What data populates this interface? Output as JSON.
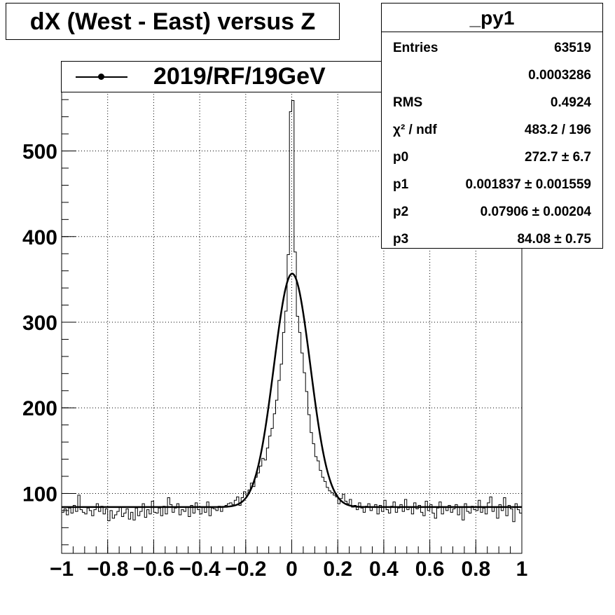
{
  "title": "dX (West - East) versus Z",
  "legend": {
    "label": "2019/RF/19GeV"
  },
  "stats": {
    "name": "_py1",
    "rows": [
      {
        "key": "Entries",
        "value": "63519"
      },
      {
        "key": "",
        "value": "0.0003286"
      },
      {
        "key": "RMS",
        "value": "0.4924"
      },
      {
        "key": "χ² / ndf",
        "value": "483.2 / 196"
      },
      {
        "key": "p0",
        "value": "272.7 ± 6.7"
      },
      {
        "key": "p1",
        "value": "0.001837 ± 0.001559"
      },
      {
        "key": "p2",
        "value": "0.07906 ± 0.00204"
      },
      {
        "key": "p3",
        "value": "84.08 ± 0.75"
      }
    ]
  },
  "chart_data": {
    "type": "line",
    "xlim": [
      -1,
      1
    ],
    "ylim": [
      30,
      570
    ],
    "grid": true,
    "xticks": [
      "−1",
      "−0.8",
      "−0.6",
      "−0.4",
      "−0.2",
      "0",
      "0.2",
      "0.4",
      "0.6",
      "0.8",
      "1"
    ],
    "xtick_values": [
      -1,
      -0.8,
      -0.6,
      -0.4,
      -0.2,
      0,
      0.2,
      0.4,
      0.6,
      0.8,
      1
    ],
    "yticks": [
      "100",
      "200",
      "300",
      "400",
      "500"
    ],
    "ytick_values": [
      100,
      200,
      300,
      400,
      500
    ],
    "histogram": {
      "bins": 200,
      "values": [
        78,
        82,
        75,
        83,
        77,
        86,
        79,
        98,
        81,
        78,
        76,
        83,
        80,
        74,
        81,
        88,
        79,
        85,
        76,
        82,
        68,
        80,
        71,
        75,
        79,
        84,
        73,
        77,
        82,
        70,
        78,
        69,
        83,
        74,
        79,
        88,
        72,
        81,
        76,
        91,
        78,
        77,
        83,
        74,
        85,
        76,
        95,
        87,
        78,
        83,
        88,
        75,
        81,
        79,
        84,
        73,
        86,
        77,
        89,
        81,
        76,
        84,
        78,
        90,
        74,
        83,
        82,
        80,
        85,
        79,
        84,
        86,
        88,
        89,
        87,
        92,
        96,
        86,
        95,
        102,
        98,
        104,
        112,
        108,
        119,
        124,
        132,
        141,
        139,
        153,
        167,
        176,
        193,
        209,
        232,
        251,
        288,
        313,
        379,
        546,
        559,
        382,
        307,
        288,
        264,
        241,
        219,
        192,
        171,
        158,
        143,
        138,
        127,
        119,
        114,
        107,
        103,
        101,
        98,
        96,
        88,
        94,
        99,
        91,
        88,
        93,
        84,
        86,
        81,
        89,
        83,
        78,
        85,
        88,
        80,
        84,
        87,
        76,
        86,
        79,
        92,
        81,
        77,
        85,
        90,
        78,
        83,
        87,
        79,
        93,
        81,
        84,
        76,
        89,
        82,
        86,
        78,
        74,
        91,
        80,
        87,
        77,
        71,
        83,
        90,
        76,
        84,
        80,
        86,
        78,
        82,
        87,
        75,
        84,
        69,
        88,
        79,
        77,
        85,
        81,
        80,
        92,
        78,
        83,
        76,
        89,
        96,
        79,
        84,
        71,
        87,
        80,
        95,
        74,
        86,
        82,
        67,
        88,
        81,
        77
      ]
    },
    "fit": {
      "function": "gaussian + constant",
      "p0": 272.7,
      "p1": 0.001837,
      "p2": 0.07906,
      "p3": 84.08
    }
  }
}
